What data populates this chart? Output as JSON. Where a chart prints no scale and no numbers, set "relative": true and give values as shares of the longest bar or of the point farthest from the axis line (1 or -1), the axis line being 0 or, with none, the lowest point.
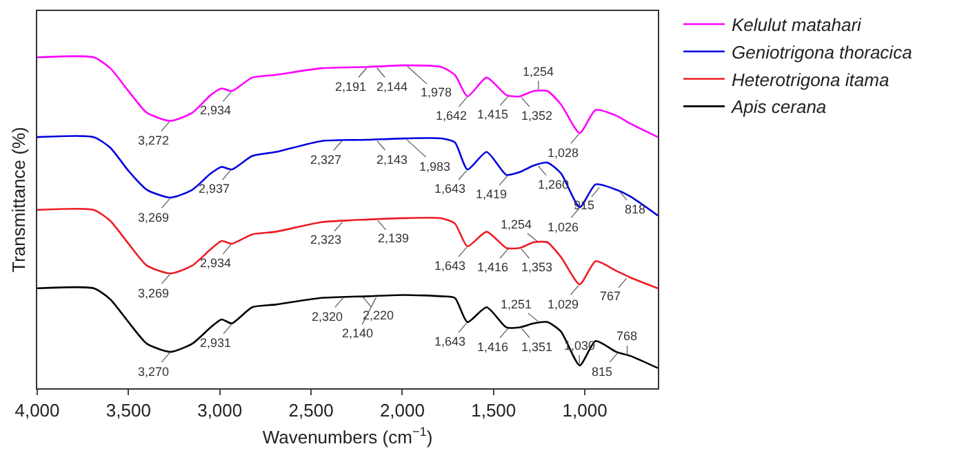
{
  "chart_data": {
    "type": "line",
    "relative": true,
    "xlabel": "Wavenumbers (cm$^{−1}$)",
    "ylabel": "Transmittance (%)",
    "xlim": [
      4000,
      600
    ],
    "xticks": [
      {
        "value": 4000,
        "label": "4,000"
      },
      {
        "value": 3500,
        "label": "3,500"
      },
      {
        "value": 3000,
        "label": "3,000"
      },
      {
        "value": 2500,
        "label": "2,500"
      },
      {
        "value": 2000,
        "label": "2,000"
      },
      {
        "value": 1500,
        "label": "1,500"
      },
      {
        "value": 1000,
        "label": "1,000"
      }
    ],
    "tick_labels": "x",
    "grid": false,
    "legend": "top right",
    "marker": "none",
    "line_style": "solid",
    "x": [
      4000,
      3690,
      3600,
      3500,
      3400,
      3270,
      3150,
      3050,
      2990,
      2934,
      2822,
      2693,
      2444,
      2190,
      1990,
      1787,
      1712,
      1643,
      1538,
      1430,
      1357,
      1281,
      1205,
      1130,
      1028,
      941,
      828,
      752,
      600
    ],
    "series": [
      {
        "name": "Kelulut matahari",
        "color": "#ff00ff",
        "values": [
          1.0,
          1.0,
          0.967,
          0.898,
          0.833,
          0.808,
          0.833,
          0.886,
          0.906,
          0.898,
          0.939,
          0.947,
          0.967,
          0.971,
          0.976,
          0.971,
          0.947,
          0.882,
          0.939,
          0.886,
          0.882,
          0.898,
          0.898,
          0.857,
          0.771,
          0.841,
          0.824,
          0.8,
          0.759
        ]
      },
      {
        "name": "Geniotrigona thoracica",
        "color": "#0000e0",
        "values": [
          0.759,
          0.759,
          0.727,
          0.657,
          0.6,
          0.576,
          0.6,
          0.649,
          0.669,
          0.661,
          0.702,
          0.714,
          0.747,
          0.751,
          0.755,
          0.755,
          0.743,
          0.661,
          0.714,
          0.645,
          0.653,
          0.673,
          0.682,
          0.649,
          0.547,
          0.616,
          0.6,
          0.58,
          0.522
        ]
      },
      {
        "name": "Heterotrigona itama",
        "color": "#ee1c24",
        "values": [
          0.539,
          0.539,
          0.506,
          0.437,
          0.371,
          0.347,
          0.371,
          0.42,
          0.445,
          0.437,
          0.465,
          0.473,
          0.502,
          0.51,
          0.514,
          0.514,
          0.498,
          0.429,
          0.473,
          0.424,
          0.424,
          0.441,
          0.441,
          0.396,
          0.314,
          0.384,
          0.355,
          0.335,
          0.302
        ]
      },
      {
        "name": "Apis cerana",
        "color": "#000000",
        "values": [
          0.302,
          0.302,
          0.269,
          0.2,
          0.135,
          0.11,
          0.135,
          0.184,
          0.208,
          0.196,
          0.245,
          0.253,
          0.273,
          0.278,
          0.282,
          0.278,
          0.273,
          0.2,
          0.245,
          0.184,
          0.184,
          0.196,
          0.2,
          0.171,
          0.069,
          0.143,
          0.11,
          0.098,
          0.061
        ]
      }
    ],
    "annotations": [
      {
        "text": "3,272",
        "x": 3272,
        "y": 0.808
      },
      {
        "text": "2,934",
        "x": 2934,
        "y": 0.898
      },
      {
        "text": "2,191",
        "x": 2191,
        "y": 0.971
      },
      {
        "text": "2,144",
        "x": 2144,
        "y": 0.971
      },
      {
        "text": "1,978",
        "x": 1978,
        "y": 0.976
      },
      {
        "text": "1,642",
        "x": 1642,
        "y": 0.882
      },
      {
        "text": "1,415",
        "x": 1415,
        "y": 0.886
      },
      {
        "text": "1,352",
        "x": 1352,
        "y": 0.882
      },
      {
        "text": "1,254",
        "x": 1254,
        "y": 0.898
      },
      {
        "text": "1,028",
        "x": 1028,
        "y": 0.771
      },
      {
        "text": "3,269",
        "x": 3269,
        "y": 0.576
      },
      {
        "text": "2,937",
        "x": 2937,
        "y": 0.661
      },
      {
        "text": "2,327",
        "x": 2327,
        "y": 0.75
      },
      {
        "text": "2,143",
        "x": 2143,
        "y": 0.751
      },
      {
        "text": "1,983",
        "x": 1983,
        "y": 0.755
      },
      {
        "text": "1,643",
        "x": 1643,
        "y": 0.661
      },
      {
        "text": "1,419",
        "x": 1419,
        "y": 0.645
      },
      {
        "text": "1,260",
        "x": 1260,
        "y": 0.675
      },
      {
        "text": "1,026",
        "x": 1026,
        "y": 0.547
      },
      {
        "text": "915",
        "x": 915,
        "y": 0.61
      },
      {
        "text": "818",
        "x": 818,
        "y": 0.6
      },
      {
        "text": "3,269",
        "x": 3269,
        "y": 0.347
      },
      {
        "text": "2,934",
        "x": 2934,
        "y": 0.437
      },
      {
        "text": "2,323",
        "x": 2323,
        "y": 0.506
      },
      {
        "text": "2,139",
        "x": 2139,
        "y": 0.51
      },
      {
        "text": "1,643",
        "x": 1643,
        "y": 0.429
      },
      {
        "text": "1,416",
        "x": 1416,
        "y": 0.424
      },
      {
        "text": "1,353",
        "x": 1353,
        "y": 0.424
      },
      {
        "text": "1,254",
        "x": 1254,
        "y": 0.441
      },
      {
        "text": "1,029",
        "x": 1029,
        "y": 0.314
      },
      {
        "text": "767",
        "x": 767,
        "y": 0.335
      },
      {
        "text": "3,270",
        "x": 3270,
        "y": 0.11
      },
      {
        "text": "2,931",
        "x": 2931,
        "y": 0.196
      },
      {
        "text": "2,320",
        "x": 2320,
        "y": 0.276
      },
      {
        "text": "2,220",
        "x": 2220,
        "y": 0.278
      },
      {
        "text": "2,140",
        "x": 2140,
        "y": 0.278
      },
      {
        "text": "1,643",
        "x": 1643,
        "y": 0.2
      },
      {
        "text": "1,416",
        "x": 1416,
        "y": 0.184
      },
      {
        "text": "1,351",
        "x": 1351,
        "y": 0.184
      },
      {
        "text": "1,251",
        "x": 1251,
        "y": 0.2
      },
      {
        "text": "1,030",
        "x": 1030,
        "y": 0.069
      },
      {
        "text": "815",
        "x": 815,
        "y": 0.11
      },
      {
        "text": "768",
        "x": 768,
        "y": 0.098
      }
    ]
  }
}
